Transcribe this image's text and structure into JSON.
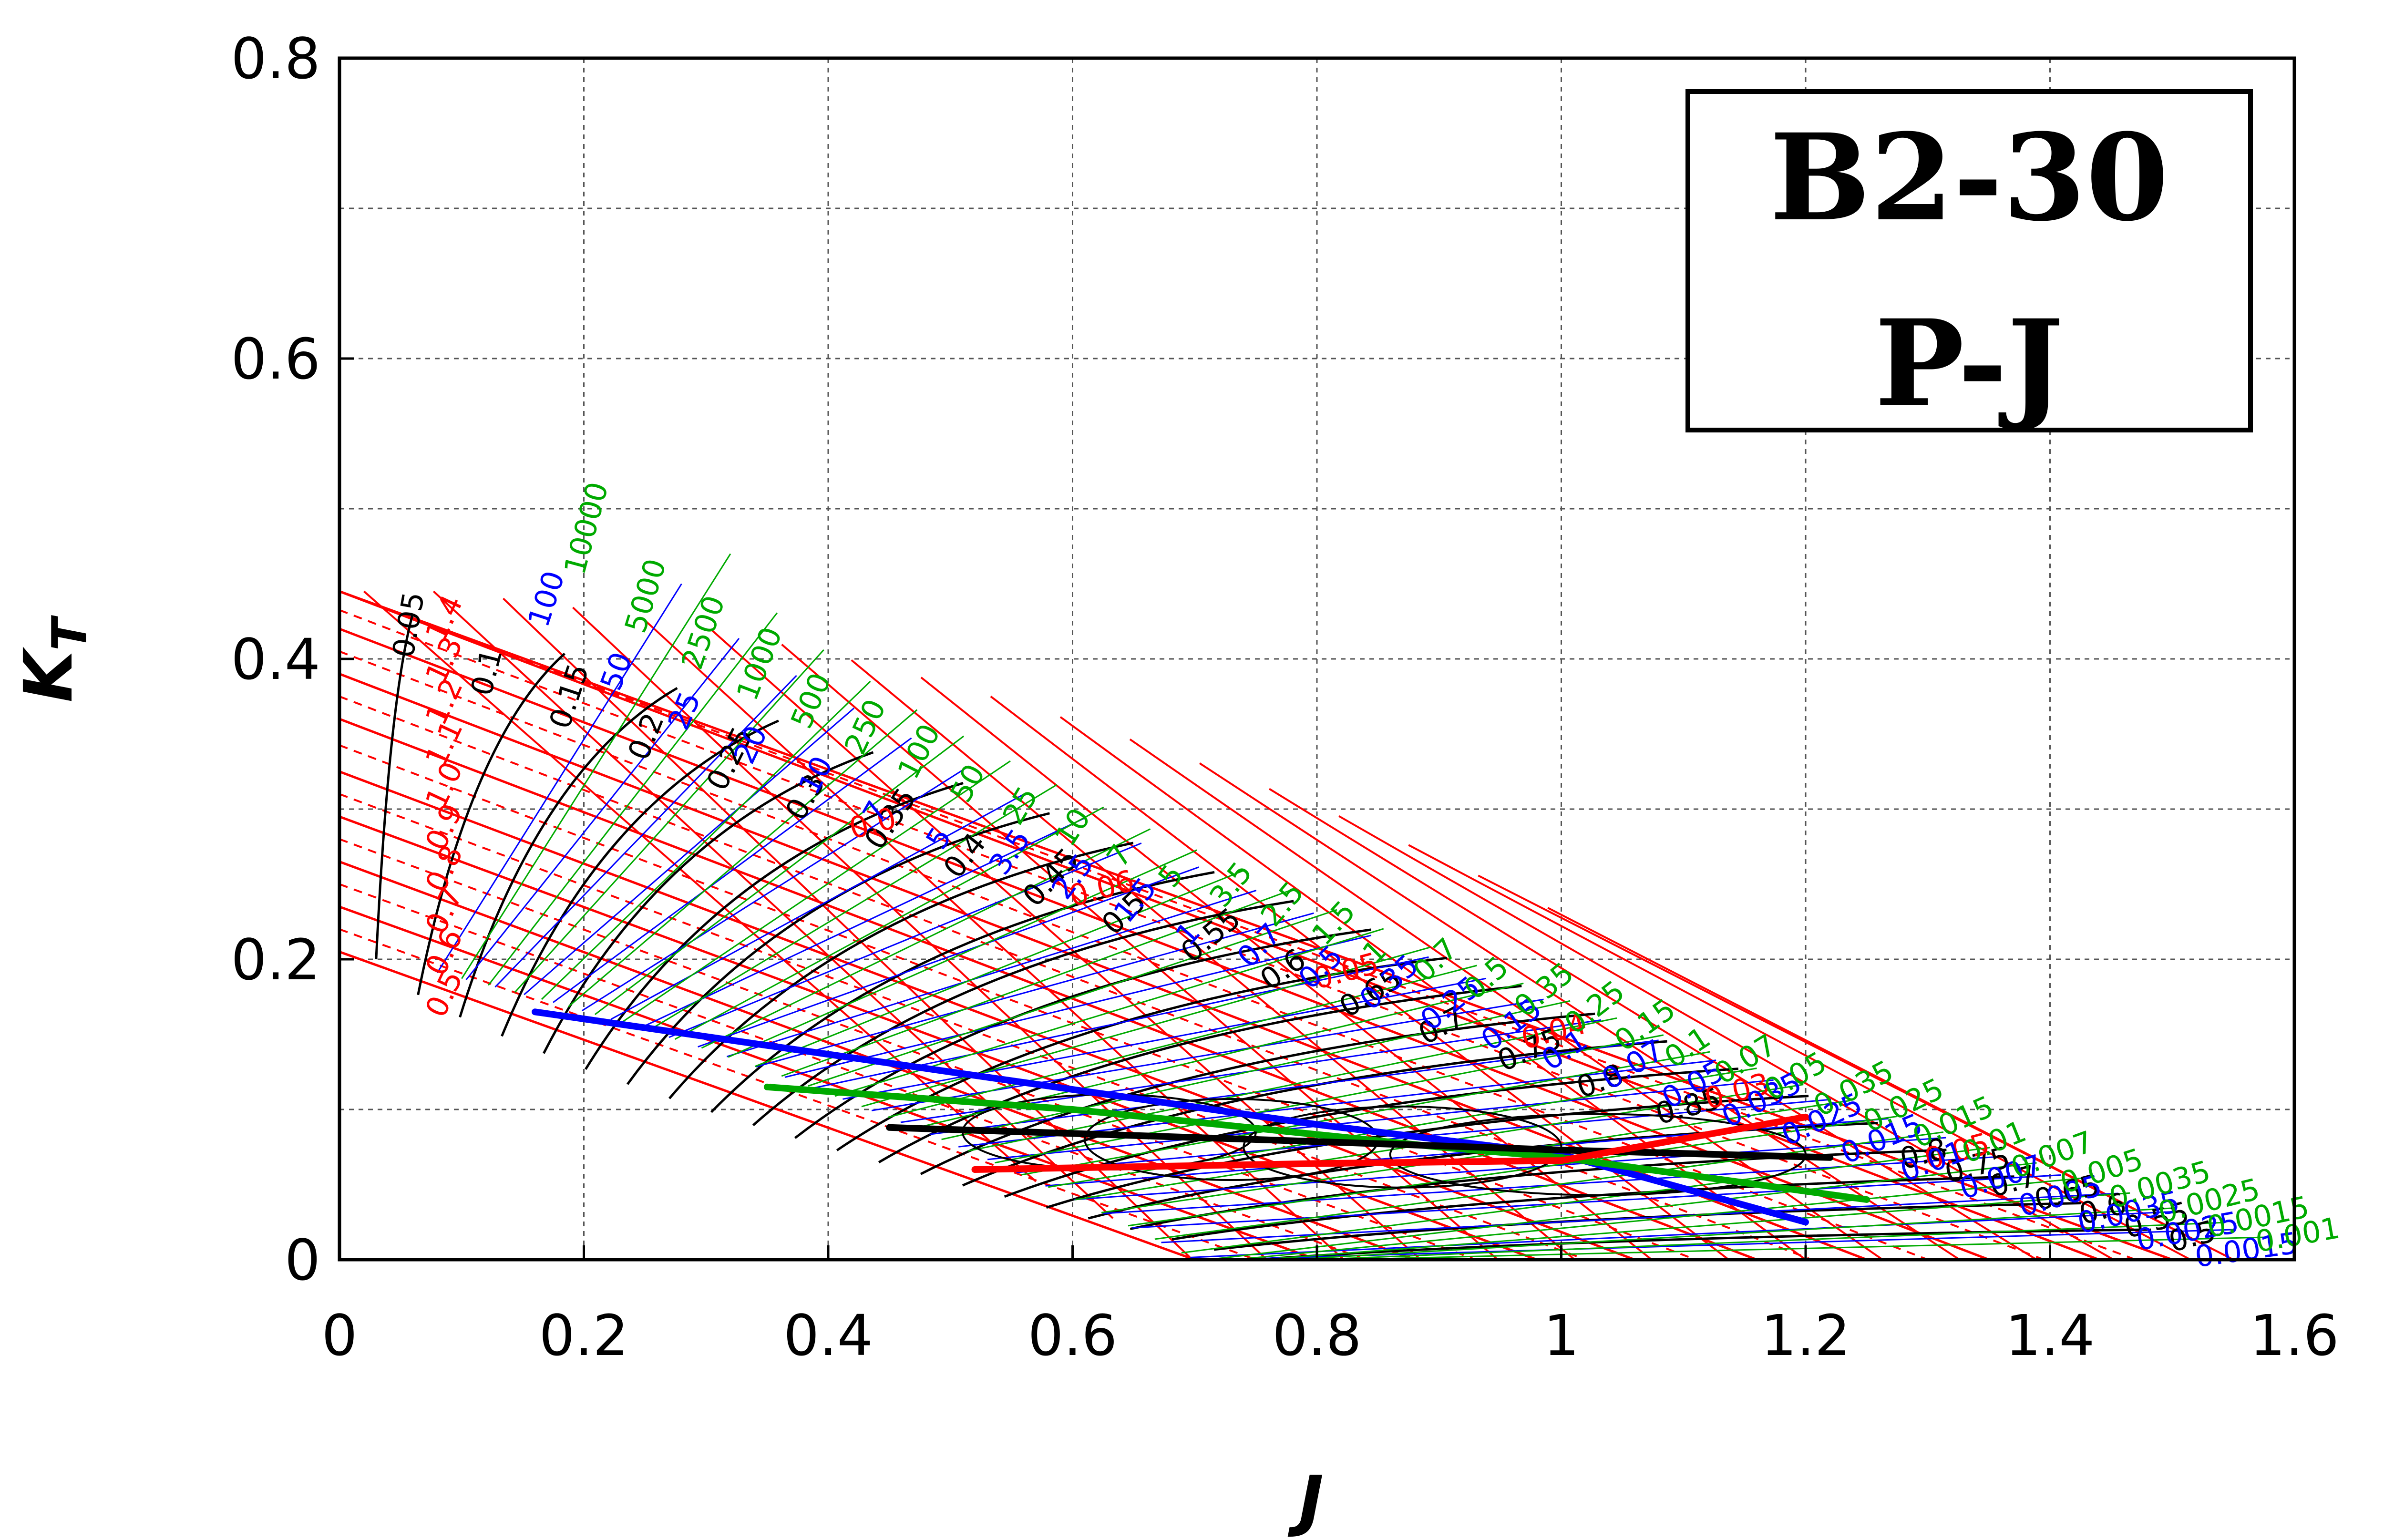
{
  "title_box": {
    "line1": "B2-30",
    "line2": "P-J"
  },
  "colors": {
    "pitch": "#ff0000",
    "efficiency": "#000000",
    "bp_family": "#0000ff",
    "delta_family": "#00aa00",
    "grid": "#555555"
  },
  "chart_data": {
    "type": "line",
    "xlabel": "J",
    "ylabel": "K",
    "ylabel_subscript": "T",
    "xlim": [
      0,
      1.6
    ],
    "ylim": [
      0,
      0.8
    ],
    "x_ticks": [
      "0",
      "0.2",
      "0.4",
      "0.6",
      "0.8",
      "1",
      "1.2",
      "1.4",
      "1.6"
    ],
    "y_ticks": [
      "0",
      "0.2",
      "0.4",
      "0.6",
      "0.8"
    ],
    "grid": true,
    "pitch_lines": {
      "color": "red",
      "labels": [
        "0.5",
        "0.6",
        "0.7",
        "0.8",
        "0.9",
        "1.0",
        "1.1",
        "1.2",
        "1.3",
        "1.4"
      ],
      "lines": [
        {
          "label": "0.5",
          "points": [
            [
              0.0,
              0.205
            ],
            [
              0.7,
              0.0
            ]
          ]
        },
        {
          "label": "0.6",
          "points": [
            [
              0.0,
              0.235
            ],
            [
              0.8,
              0.0
            ]
          ]
        },
        {
          "label": "0.7",
          "points": [
            [
              0.0,
              0.265
            ],
            [
              0.88,
              0.0
            ]
          ]
        },
        {
          "label": "0.8",
          "points": [
            [
              0.0,
              0.295
            ],
            [
              0.98,
              0.0
            ]
          ]
        },
        {
          "label": "0.9",
          "points": [
            [
              0.0,
              0.325
            ],
            [
              1.06,
              0.0
            ]
          ]
        },
        {
          "label": "1.0",
          "points": [
            [
              0.0,
              0.36
            ],
            [
              1.16,
              0.0
            ]
          ]
        },
        {
          "label": "1.1",
          "points": [
            [
              0.0,
              0.39
            ],
            [
              1.25,
              0.0
            ]
          ]
        },
        {
          "label": "1.2",
          "points": [
            [
              0.0,
              0.42
            ],
            [
              1.35,
              0.0
            ]
          ]
        },
        {
          "label": "1.3",
          "points": [
            [
              0.0,
              0.445
            ],
            [
              1.44,
              0.0
            ]
          ]
        },
        {
          "label": "1.4",
          "points": [
            [
              0.0,
              0.445
            ],
            [
              1.5,
              0.0
            ]
          ]
        }
      ],
      "diameter_labels": [
        "0.06",
        "0.05",
        "0.04",
        "0.03",
        "0.0",
        "0.05"
      ]
    },
    "efficiency_curves": {
      "color": "black",
      "labels": [
        "0.05",
        "0.1",
        "0.15",
        "0.2",
        "0.25",
        "0.3",
        "0.35",
        "0.4",
        "0.45",
        "0.5",
        "0.55",
        "0.6",
        "0.65",
        "0.7",
        "0.75",
        "0.8",
        "0.85",
        "0.8",
        "0.75",
        "0.7",
        "0.65",
        "0.6",
        "0.55",
        "0.5"
      ]
    },
    "bp_lines": {
      "color": "blue",
      "labels": [
        "100",
        "50",
        "25",
        "20",
        "10",
        "7",
        "5",
        "3.5",
        "2.5",
        "1.5",
        "1",
        "0.7",
        "0.5",
        "0.35",
        "0.25",
        "0.15",
        "0.1",
        "0.07",
        "0.05",
        "0.035",
        "0.025",
        "0.015",
        "0.01",
        "0.007",
        "0.005",
        "0.0035",
        "0.0025",
        "0.0015"
      ]
    },
    "delta_lines": {
      "color": "green",
      "labels": [
        "10000",
        "5000",
        "2500",
        "1000",
        "500",
        "250",
        "100",
        "50",
        "25",
        "10",
        "7",
        "5",
        "3.5",
        "2.5",
        "1.5",
        "1",
        "0.7",
        "0.5",
        "0.35",
        "0.25",
        "0.15",
        "0.1",
        "0.07",
        "0.05",
        "0.035",
        "0.025",
        "0.015",
        "0.01",
        "0.007",
        "0.005",
        "0.0035",
        "0.0025",
        "0.0015",
        "0.001"
      ]
    },
    "optimum_lines": [
      {
        "color": "blue",
        "points": [
          [
            0.16,
            0.165
          ],
          [
            0.5,
            0.125
          ],
          [
            0.8,
            0.09
          ],
          [
            1.0,
            0.07
          ],
          [
            1.2,
            0.025
          ]
        ]
      },
      {
        "color": "green",
        "points": [
          [
            0.35,
            0.115
          ],
          [
            0.6,
            0.1
          ],
          [
            0.9,
            0.075
          ],
          [
            1.0,
            0.068
          ],
          [
            1.25,
            0.04
          ]
        ]
      },
      {
        "color": "black",
        "points": [
          [
            0.45,
            0.088
          ],
          [
            0.75,
            0.08
          ],
          [
            1.0,
            0.073
          ],
          [
            1.22,
            0.068
          ]
        ]
      },
      {
        "color": "red",
        "points": [
          [
            0.52,
            0.06
          ],
          [
            0.8,
            0.064
          ],
          [
            1.0,
            0.066
          ],
          [
            1.2,
            0.095
          ]
        ]
      }
    ],
    "ellipses": [
      {
        "cx": 0.63,
        "cy": 0.085,
        "rx": 0.12,
        "ry": 0.025
      },
      {
        "cx": 0.73,
        "cy": 0.08,
        "rx": 0.12,
        "ry": 0.027
      },
      {
        "cx": 0.87,
        "cy": 0.075,
        "rx": 0.13,
        "ry": 0.027
      },
      {
        "cx": 1.03,
        "cy": 0.07,
        "rx": 0.17,
        "ry": 0.027
      }
    ]
  }
}
